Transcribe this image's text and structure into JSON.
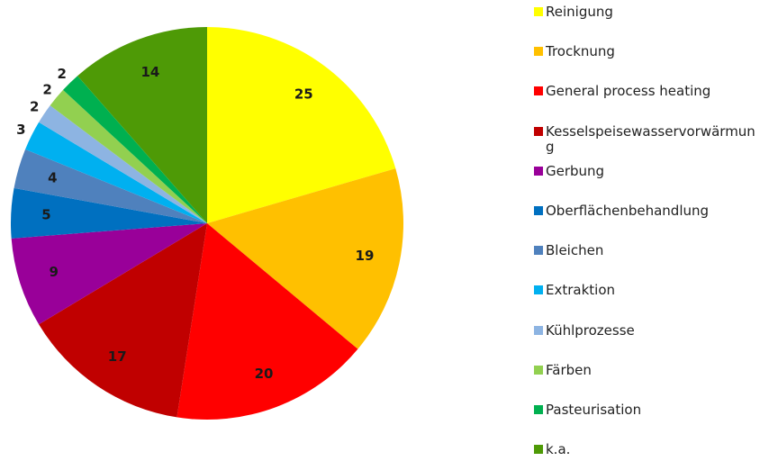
{
  "chart_data": {
    "type": "pie",
    "categories": [
      "Reinigung",
      "Trocknung",
      "General process heating",
      "Kesselspeisewasservorwärmung",
      "Gerbung",
      "Oberflächenbehandlung",
      "Bleichen",
      "Extraktion",
      "Kühlprozesse",
      "Färben",
      "Pasteurisation",
      "k.a."
    ],
    "values": [
      25,
      19,
      20,
      17,
      9,
      5,
      4,
      3,
      2,
      2,
      2,
      14
    ],
    "colors": [
      "#ffff00",
      "#ffc000",
      "#ff0000",
      "#c00000",
      "#990099",
      "#0070c0",
      "#4f81bd",
      "#00b0f0",
      "#8db4e2",
      "#92d050",
      "#00b050",
      "#4e9a06"
    ],
    "legend": "right"
  }
}
